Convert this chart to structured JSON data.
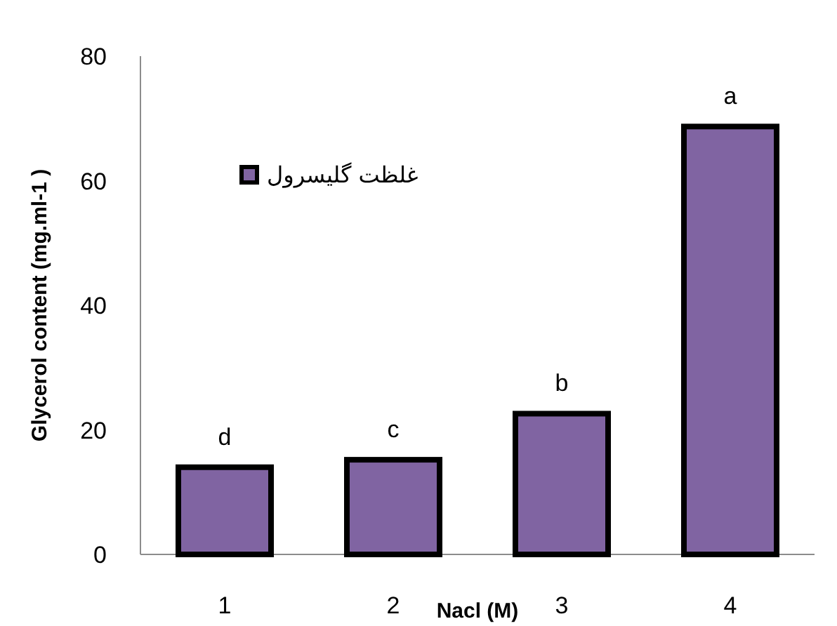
{
  "chart_data": {
    "type": "bar",
    "categories": [
      "1",
      "2",
      "3",
      "4"
    ],
    "series": [
      {
        "name": "غلظت گلیسرول",
        "color": "#8064a2",
        "values": [
          14,
          15.2,
          22.6,
          68.7
        ]
      }
    ],
    "xlabel": "Nacl (M)",
    "ylabel": "Glycerol content (mg.ml-1 )",
    "ylim": [
      0,
      80
    ],
    "yticks": [
      0,
      20,
      40,
      60,
      80
    ],
    "annotations": [
      {
        "text": "d",
        "x": "1",
        "y": 14
      },
      {
        "text": "c",
        "x": "2",
        "y": 15.2
      },
      {
        "text": "b",
        "x": "3",
        "y": 22.6
      },
      {
        "text": "a",
        "x": "4",
        "y": 68.7
      }
    ],
    "legend": "top left",
    "grid": false
  }
}
